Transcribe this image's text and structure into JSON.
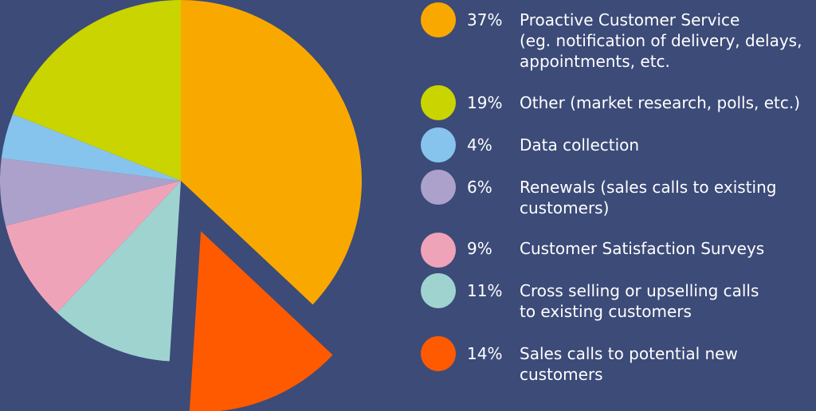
{
  "chart_data": {
    "type": "pie",
    "title": "",
    "slices": [
      {
        "percent_label": "37%",
        "value": 37,
        "label": "Proactive Customer Service\n(eg. notification of delivery, delays,\nappointments, etc.",
        "color": "#f9a800"
      },
      {
        "percent_label": "14%",
        "value": 14,
        "label": "Sales calls to potential new\ncustomers",
        "color": "#ff5a00",
        "exploded": true
      },
      {
        "percent_label": "11%",
        "value": 11,
        "label": "Cross selling or upselling calls\nto existing customers",
        "color": "#9fd3d0"
      },
      {
        "percent_label": "9%",
        "value": 9,
        "label": "Customer Satisfaction Surveys",
        "color": "#efa3b9"
      },
      {
        "percent_label": "6%",
        "value": 6,
        "label": "Renewals (sales calls to existing\ncustomers)",
        "color": "#aba1cb"
      },
      {
        "percent_label": "4%",
        "value": 4,
        "label": "Data collection",
        "color": "#87c4ed"
      },
      {
        "percent_label": "19%",
        "value": 19,
        "label": "Other (market research, polls, etc.)",
        "color": "#c9d400"
      }
    ],
    "legend_order": [
      "37%",
      "19%",
      "4%",
      "6%",
      "9%",
      "11%",
      "14%"
    ],
    "legend_position": "right",
    "background": "#3c4b78",
    "text_color": "#ffffff"
  }
}
